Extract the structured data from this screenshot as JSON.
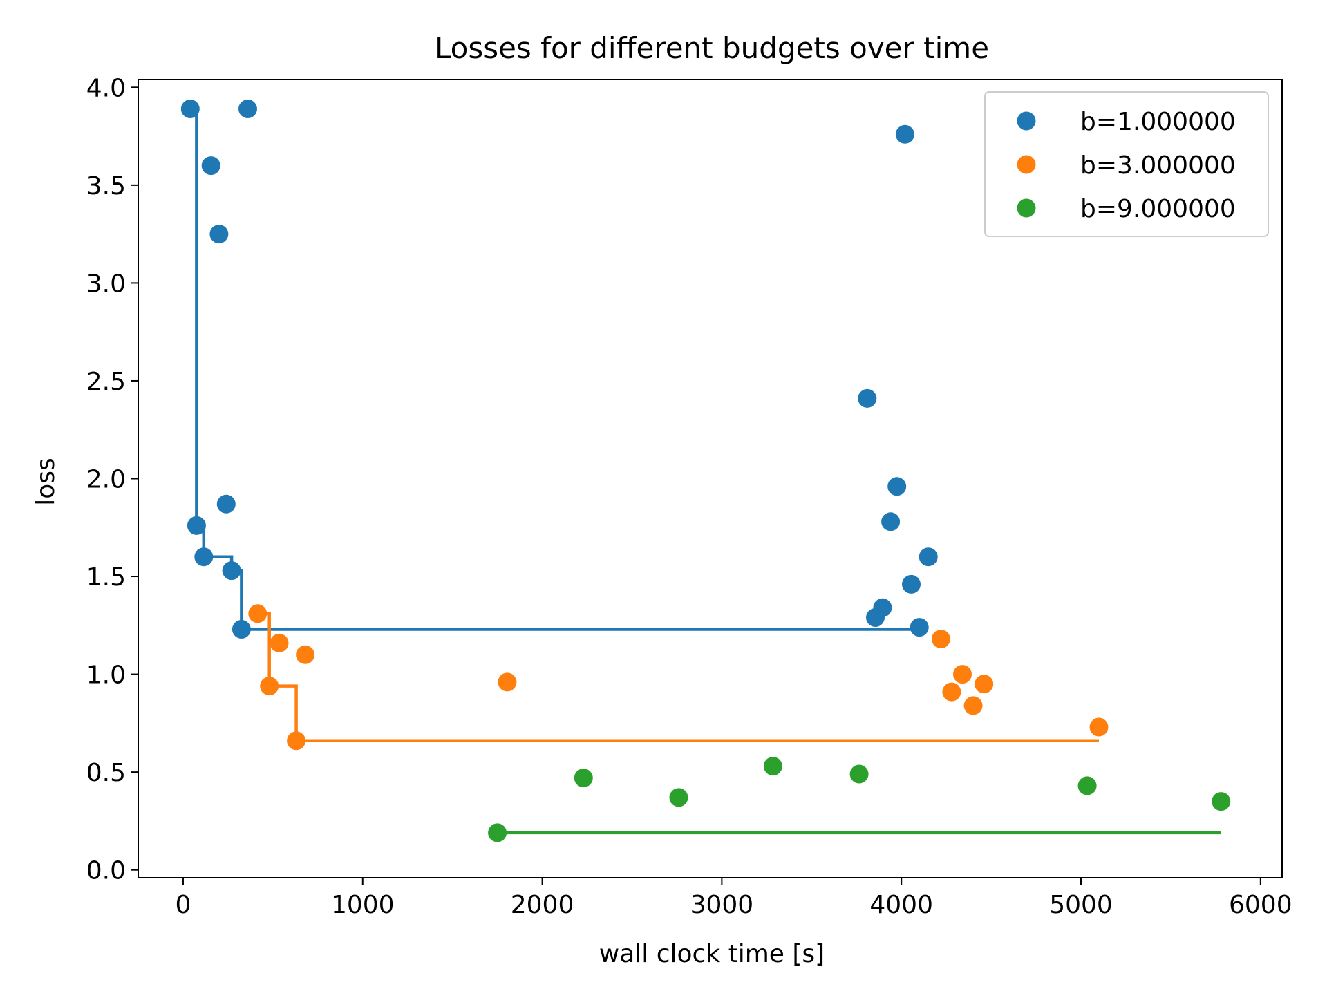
{
  "chart_data": {
    "type": "scatter",
    "title": "Losses for different budgets over time",
    "xlabel": "wall clock time [s]",
    "ylabel": "loss",
    "xlim": [
      -250,
      6120
    ],
    "ylim": [
      -0.04,
      4.04
    ],
    "xticks": [
      0,
      1000,
      2000,
      3000,
      4000,
      5000,
      6000
    ],
    "yticks": [
      0.0,
      0.5,
      1.0,
      1.5,
      2.0,
      2.5,
      3.0,
      3.5,
      4.0
    ],
    "xtick_labels": [
      "0",
      "1000",
      "2000",
      "3000",
      "4000",
      "5000",
      "6000"
    ],
    "ytick_labels": [
      "0.0",
      "0.5",
      "1.0",
      "1.5",
      "2.0",
      "2.5",
      "3.0",
      "3.5",
      "4.0"
    ],
    "grid": false,
    "legend_position": "top-right",
    "series": [
      {
        "name": "b=1.000000",
        "color": "#1f77b4",
        "points": [
          [
            40,
            3.89
          ],
          [
            360,
            3.89
          ],
          [
            155,
            3.6
          ],
          [
            200,
            3.25
          ],
          [
            240,
            1.87
          ],
          [
            75,
            1.76
          ],
          [
            115,
            1.6
          ],
          [
            270,
            1.53
          ],
          [
            325,
            1.23
          ],
          [
            3810,
            2.41
          ],
          [
            4020,
            3.76
          ],
          [
            3975,
            1.96
          ],
          [
            3940,
            1.78
          ],
          [
            4150,
            1.6
          ],
          [
            4055,
            1.46
          ],
          [
            3895,
            1.34
          ],
          [
            3855,
            1.29
          ],
          [
            4100,
            1.24
          ]
        ],
        "incumbent_steps": [
          [
            75,
            3.89
          ],
          [
            75,
            1.76
          ],
          [
            115,
            1.76
          ],
          [
            115,
            1.6
          ],
          [
            270,
            1.6
          ],
          [
            270,
            1.53
          ],
          [
            325,
            1.53
          ],
          [
            325,
            1.23
          ],
          [
            4100,
            1.23
          ]
        ]
      },
      {
        "name": "b=3.000000",
        "color": "#ff7f0e",
        "points": [
          [
            415,
            1.31
          ],
          [
            535,
            1.16
          ],
          [
            680,
            1.1
          ],
          [
            480,
            0.94
          ],
          [
            630,
            0.66
          ],
          [
            1805,
            0.96
          ],
          [
            4220,
            1.18
          ],
          [
            4340,
            1.0
          ],
          [
            4460,
            0.95
          ],
          [
            4280,
            0.91
          ],
          [
            4400,
            0.84
          ],
          [
            5100,
            0.73
          ]
        ],
        "incumbent_steps": [
          [
            415,
            1.31
          ],
          [
            480,
            1.31
          ],
          [
            480,
            0.94
          ],
          [
            630,
            0.94
          ],
          [
            630,
            0.66
          ],
          [
            5100,
            0.66
          ]
        ]
      },
      {
        "name": "b=9.000000",
        "color": "#2ca02c",
        "points": [
          [
            1750,
            0.19
          ],
          [
            2230,
            0.47
          ],
          [
            2760,
            0.37
          ],
          [
            3285,
            0.53
          ],
          [
            3765,
            0.49
          ],
          [
            5035,
            0.43
          ],
          [
            5780,
            0.35
          ]
        ],
        "incumbent_steps": [
          [
            1750,
            0.19
          ],
          [
            5780,
            0.19
          ]
        ]
      }
    ]
  }
}
